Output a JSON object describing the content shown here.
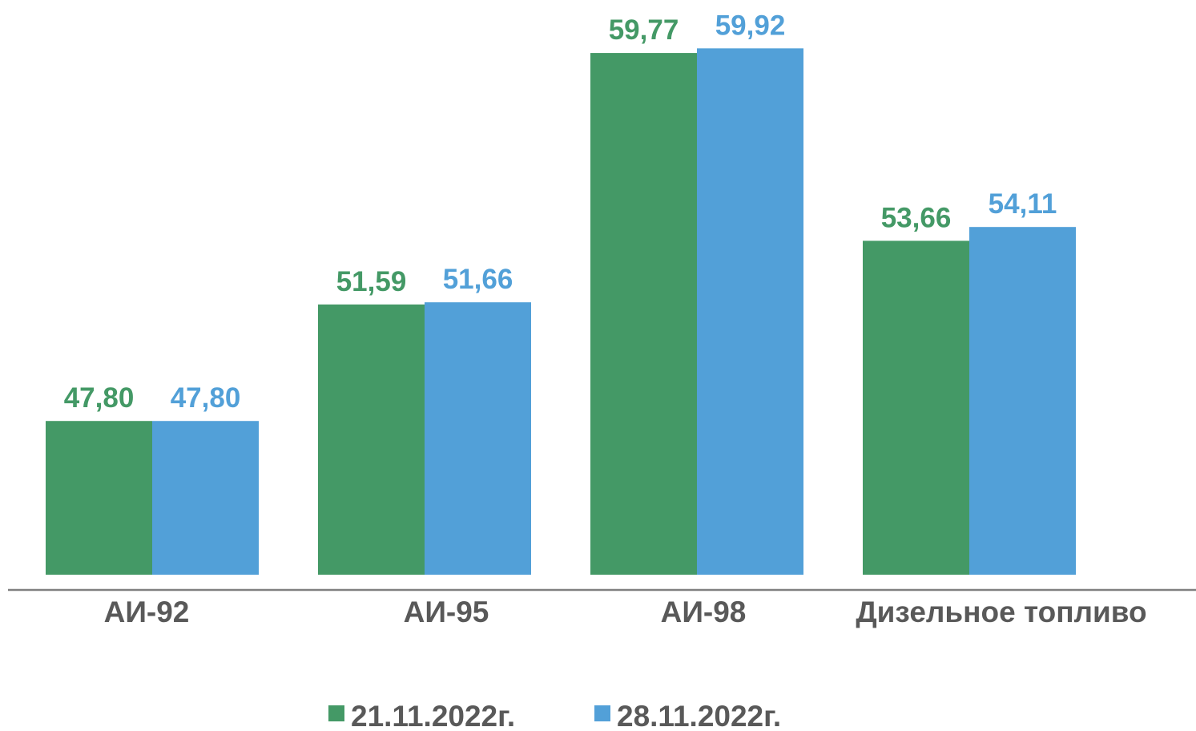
{
  "chart_data": {
    "type": "bar",
    "categories": [
      "АИ-92",
      "АИ-95",
      "АИ-98",
      "Дизельное топливо"
    ],
    "series": [
      {
        "name": "21.11.2022г.",
        "color": "#449966",
        "values": [
          47.8,
          51.59,
          59.77,
          53.66
        ],
        "labels": [
          "47,80",
          "51,59",
          "59,77",
          "53,66"
        ]
      },
      {
        "name": "28.11.2022г.",
        "color": "#52a0d8",
        "values": [
          47.8,
          51.66,
          59.92,
          54.11
        ],
        "labels": [
          "47,80",
          "51,66",
          "59,92",
          "54,11"
        ]
      }
    ],
    "title": "",
    "xlabel": "",
    "ylabel": "",
    "ylim": [
      42.8,
      60.45
    ],
    "grid": false,
    "legend": "bottom",
    "axis_color": "#808080",
    "text_color": "#595959"
  }
}
